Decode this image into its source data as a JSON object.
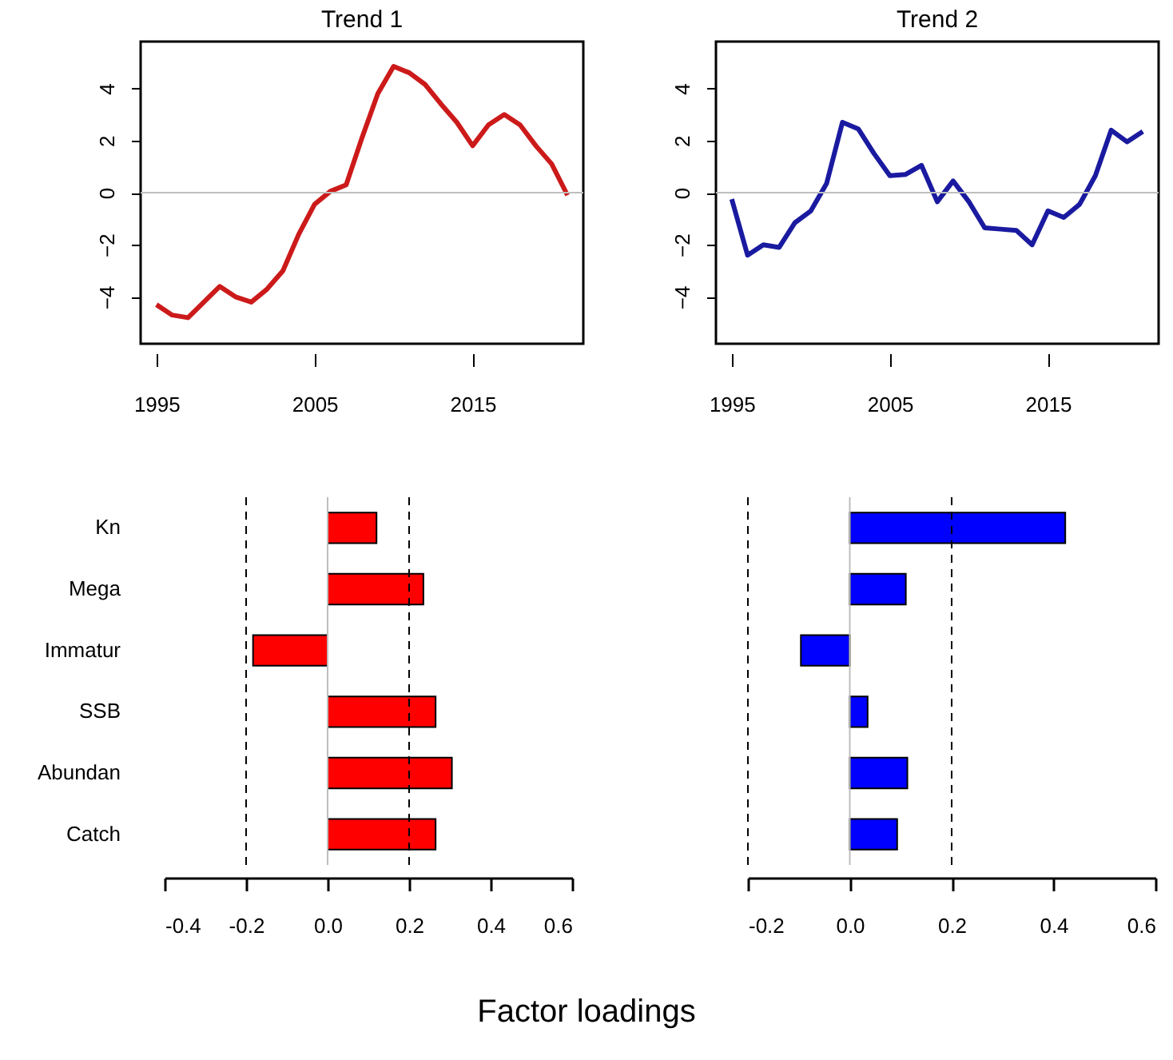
{
  "chart_data": [
    {
      "type": "line",
      "title": "Trend 1",
      "x": [
        1995,
        1996,
        1997,
        1998,
        1999,
        2000,
        2001,
        2002,
        2003,
        2004,
        2005,
        2006,
        2007,
        2008,
        2009,
        2010,
        2011,
        2012,
        2013,
        2014,
        2015,
        2016,
        2017,
        2018,
        2019,
        2020,
        2021
      ],
      "series": [
        {
          "color": "#cc1a1a",
          "values": [
            -4.3,
            -4.7,
            -4.8,
            -4.2,
            -3.6,
            -4.0,
            -4.2,
            -3.7,
            -3.0,
            -1.6,
            -0.45,
            0.05,
            0.3,
            2.1,
            3.8,
            4.85,
            4.6,
            4.15,
            3.4,
            2.7,
            1.8,
            2.6,
            3.0,
            2.6,
            1.8,
            1.1,
            -0.1
          ]
        }
      ],
      "xlim": [
        1994,
        2022
      ],
      "xticks": [
        1995,
        2005,
        2015
      ],
      "ylim": [
        -5.8,
        5.8
      ],
      "yticks": [
        -4,
        -2,
        0,
        2,
        4
      ],
      "grid": false,
      "marker": "none",
      "line_style": "solid",
      "ref_lines": [
        {
          "axis": "y",
          "value": 0,
          "color": "#bebebe",
          "line_style": "solid"
        }
      ]
    },
    {
      "type": "line",
      "title": "Trend 2",
      "x": [
        1995,
        1996,
        1997,
        1998,
        1999,
        2000,
        2001,
        2002,
        2003,
        2004,
        2005,
        2006,
        2007,
        2008,
        2009,
        2010,
        2011,
        2012,
        2013,
        2014,
        2015,
        2016,
        2017,
        2018,
        2019,
        2020,
        2021
      ],
      "series": [
        {
          "color": "#1a1aa0",
          "values": [
            -0.25,
            -2.4,
            -2.0,
            -2.1,
            -1.15,
            -0.7,
            0.35,
            2.7,
            2.45,
            1.5,
            0.65,
            0.7,
            1.05,
            -0.35,
            0.45,
            -0.35,
            -1.35,
            -1.4,
            -1.45,
            -2.0,
            -0.7,
            -0.95,
            -0.45,
            0.65,
            2.4,
            1.95,
            2.35
          ]
        }
      ],
      "xlim": [
        1994,
        2022
      ],
      "xticks": [
        1995,
        2005,
        2015
      ],
      "ylim": [
        -5.8,
        5.8
      ],
      "yticks": [
        -4,
        -2,
        0,
        2,
        4
      ],
      "grid": false,
      "marker": "none",
      "line_style": "solid",
      "ref_lines": [
        {
          "axis": "y",
          "value": 0,
          "color": "#bebebe",
          "line_style": "solid"
        }
      ]
    },
    {
      "type": "bar",
      "orientation": "horizontal",
      "categories": [
        "Kn",
        "Mega",
        "Immatur",
        "SSB",
        "Abundan",
        "Catch"
      ],
      "series": [
        {
          "color": "#ff0000",
          "values": [
            0.12,
            0.235,
            -0.183,
            0.265,
            0.305,
            0.265
          ]
        }
      ],
      "xlim": [
        -0.4,
        0.6
      ],
      "xticks": [
        {
          "value": -0.4,
          "label": "-0.4"
        },
        {
          "value": -0.2,
          "label": "-0.2"
        },
        {
          "value": 0,
          "label": "0.0"
        },
        {
          "value": 0.2,
          "label": "0.2"
        },
        {
          "value": 0.4,
          "label": "0.4"
        },
        {
          "value": 0.6,
          "label": "0.6"
        }
      ],
      "grid": false,
      "xlabel": "Factor loadings",
      "ref_lines": [
        {
          "axis": "x",
          "value": 0,
          "color": "#bebebe",
          "line_style": "solid"
        },
        {
          "axis": "x",
          "value": -0.2,
          "color": "#000000",
          "line_style": "dashed"
        },
        {
          "axis": "x",
          "value": 0.2,
          "color": "#000000",
          "line_style": "dashed"
        }
      ]
    },
    {
      "type": "bar",
      "orientation": "horizontal",
      "categories": [
        null,
        null,
        null,
        null,
        null,
        null
      ],
      "series": [
        {
          "color": "#0000ff",
          "values": [
            0.423,
            0.11,
            -0.096,
            0.035,
            0.113,
            0.093
          ]
        }
      ],
      "xlim": [
        -0.2,
        0.6
      ],
      "xticks": [
        {
          "value": -0.2,
          "label": "-0.2"
        },
        {
          "value": 0,
          "label": "0.0"
        },
        {
          "value": 0.2,
          "label": "0.2"
        },
        {
          "value": 0.4,
          "label": "0.4"
        },
        {
          "value": 0.6,
          "label": "0.6"
        }
      ],
      "grid": false,
      "ref_lines": [
        {
          "axis": "x",
          "value": 0,
          "color": "#bebebe",
          "line_style": "solid"
        },
        {
          "axis": "x",
          "value": -0.2,
          "color": "#000000",
          "line_style": "dashed"
        },
        {
          "axis": "x",
          "value": 0.2,
          "color": "#000000",
          "line_style": "dashed"
        }
      ]
    }
  ]
}
